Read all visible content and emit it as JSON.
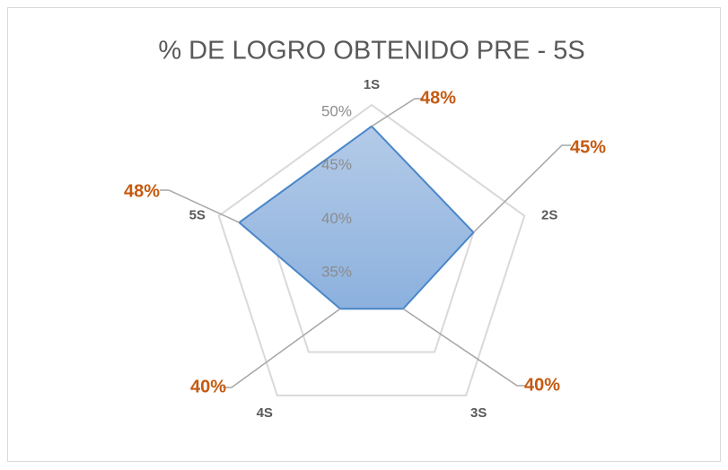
{
  "chart_data": {
    "type": "radar",
    "title": "% DE LOGRO OBTENIDO PRE - 5S",
    "categories": [
      "1S",
      "2S",
      "3S",
      "4S",
      "5S"
    ],
    "values": [
      48,
      45,
      40,
      40,
      48
    ],
    "value_labels": [
      "48%",
      "45%",
      "40%",
      "40%",
      "48%"
    ],
    "color": "#4a86c8",
    "ylim": [
      35,
      50
    ],
    "yticks": [
      {
        "value": 35,
        "label": "35%"
      },
      {
        "value": 40,
        "label": "40%"
      },
      {
        "value": 45,
        "label": "45%"
      },
      {
        "value": 50,
        "label": "50%"
      }
    ],
    "grid": true
  }
}
